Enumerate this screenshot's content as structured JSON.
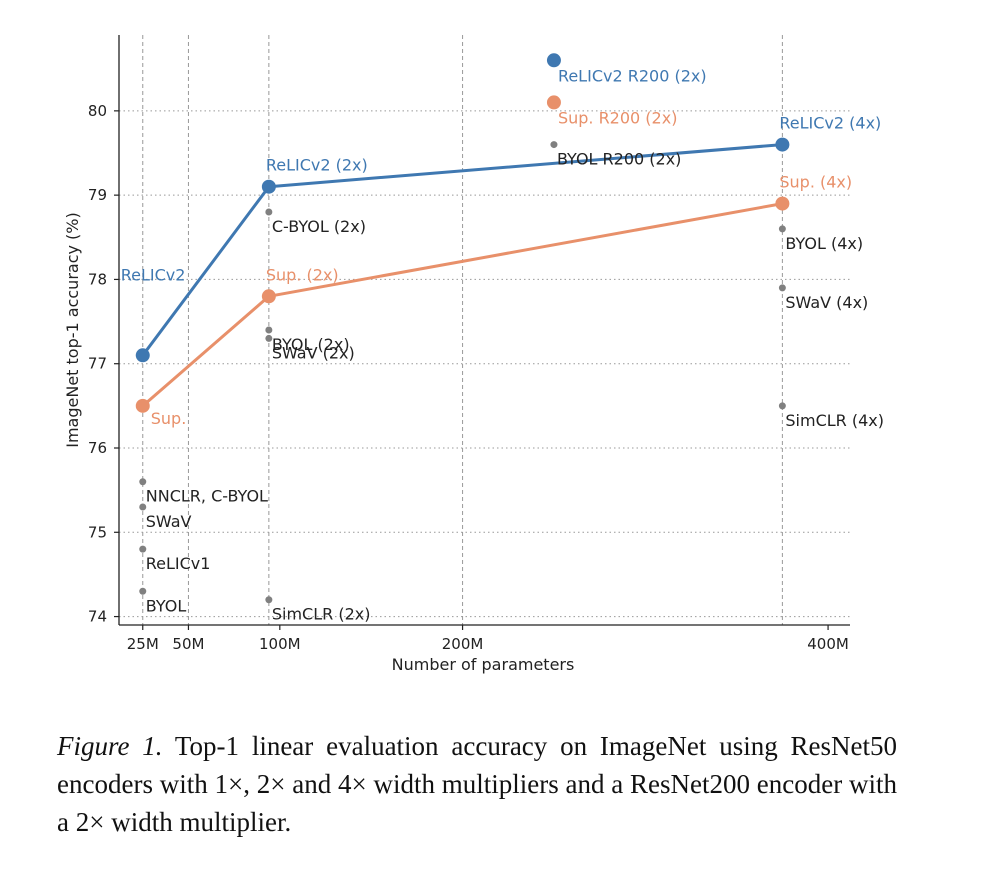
{
  "chart_data": {
    "type": "scatter",
    "xlabel": "Number of parameters",
    "ylabel": "ImageNet top-1 accuracy (%)",
    "xlim": [
      12,
      412
    ],
    "ylim": [
      73.9,
      80.9
    ],
    "x_ticks": [
      {
        "value": 25,
        "label": "25M"
      },
      {
        "value": 50,
        "label": "50M"
      },
      {
        "value": 100,
        "label": "100M"
      },
      {
        "value": 200,
        "label": "200M"
      },
      {
        "value": 400,
        "label": "400M"
      }
    ],
    "y_ticks": [
      74,
      75,
      76,
      77,
      78,
      79,
      80
    ],
    "vgrid_x": [
      25,
      50,
      94,
      200,
      375
    ],
    "grid": true,
    "colors": {
      "relic": "#3f78b1",
      "sup": "#e8906a",
      "other": "#808080",
      "axis": "#222222",
      "grid": "#999999"
    },
    "series": [
      {
        "name": "ReLICv2",
        "color_key": "relic",
        "points": [
          {
            "x": 25,
            "y": 77.1,
            "label": "ReLICv2",
            "label_pos": "up-left"
          },
          {
            "x": 94,
            "y": 79.1,
            "label": "ReLICv2 (2x)",
            "label_pos": "above"
          },
          {
            "x": 375,
            "y": 79.6,
            "label": "ReLICv2 (4x)",
            "label_pos": "above"
          }
        ]
      },
      {
        "name": "Sup.",
        "color_key": "sup",
        "points": [
          {
            "x": 25,
            "y": 76.5,
            "label": "Sup.",
            "label_pos": "below-right"
          },
          {
            "x": 94,
            "y": 77.8,
            "label": "Sup. (2x)",
            "label_pos": "above"
          },
          {
            "x": 375,
            "y": 78.9,
            "label": "Sup. (4x)",
            "label_pos": "above"
          }
        ]
      }
    ],
    "highlight_points": [
      {
        "x": 250,
        "y": 80.6,
        "label": "ReLICv2 R200 (2x)",
        "color_key": "relic"
      },
      {
        "x": 250,
        "y": 80.1,
        "label": "Sup. R200 (2x)",
        "color_key": "sup"
      }
    ],
    "other_points": [
      {
        "x": 25,
        "y": 75.6,
        "label": "NNCLR,  C-BYOL"
      },
      {
        "x": 25,
        "y": 75.3,
        "label": "SWaV"
      },
      {
        "x": 25,
        "y": 74.8,
        "label": "ReLICv1"
      },
      {
        "x": 25,
        "y": 74.3,
        "label": "BYOL"
      },
      {
        "x": 94,
        "y": 78.8,
        "label": "C-BYOL (2x)"
      },
      {
        "x": 94,
        "y": 77.4,
        "label": "BYOL (2x)"
      },
      {
        "x": 94,
        "y": 77.3,
        "label": "SWaV (2x)"
      },
      {
        "x": 94,
        "y": 74.2,
        "label": "SimCLR (2x)"
      },
      {
        "x": 250,
        "y": 79.6,
        "label": "BYOL R200 (2x)"
      },
      {
        "x": 375,
        "y": 78.6,
        "label": "BYOL (4x)"
      },
      {
        "x": 375,
        "y": 77.9,
        "label": "SWaV (4x)"
      },
      {
        "x": 375,
        "y": 76.5,
        "label": "SimCLR (4x)"
      }
    ]
  },
  "caption": {
    "label": "Figure 1.",
    "text": "Top-1 linear evaluation accuracy on ImageNet using ResNet50 encoders with 1×, 2× and 4× width multipliers and a ResNet200 encoder with a 2× width multiplier."
  }
}
